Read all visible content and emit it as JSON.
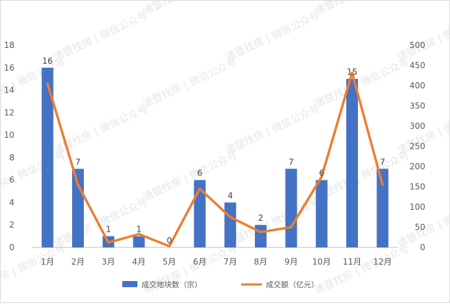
{
  "chart_data": {
    "type": "bar+line",
    "categories": [
      "1月",
      "2月",
      "3月",
      "4月",
      "5月",
      "6月",
      "7月",
      "8月",
      "9月",
      "10月",
      "11月",
      "12月"
    ],
    "series": [
      {
        "name": "成交地块数（宗）",
        "type": "bar",
        "axis": "left",
        "color": "#4472C4",
        "values": [
          16,
          7,
          1,
          1,
          0,
          6,
          4,
          2,
          7,
          6,
          15,
          7
        ]
      },
      {
        "name": "成交额（亿元）",
        "type": "line",
        "axis": "right",
        "color": "#ED7D31",
        "values": [
          405,
          155,
          12,
          33,
          3,
          145,
          75,
          38,
          50,
          175,
          432,
          155
        ]
      }
    ],
    "y_left": {
      "min": 0,
      "max": 18,
      "ticks": [
        0,
        2,
        4,
        6,
        8,
        10,
        12,
        14,
        16,
        18
      ]
    },
    "y_right": {
      "min": 0,
      "max": 500,
      "ticks": [
        0,
        50,
        100,
        150,
        200,
        250,
        300,
        350,
        400,
        450,
        500
      ]
    },
    "data_labels": [
      "16",
      "7",
      "1",
      "1",
      "0",
      "6",
      "4",
      "2",
      "7",
      "6",
      "15",
      "7"
    ],
    "grid": false,
    "legend_position": "bottom"
  },
  "watermark": "诸暨找房 | 微信公众号"
}
